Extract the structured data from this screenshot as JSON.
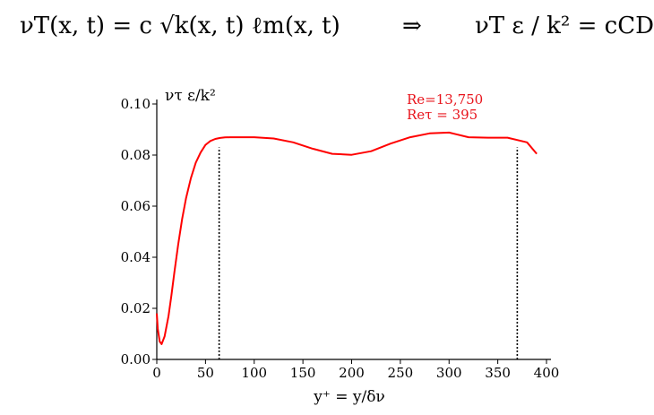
{
  "equations": {
    "left": "νT(x, t) = c √k(x, t) ℓm(x, t)",
    "arrow": "⇒",
    "right": "νT ε / k² = cCD"
  },
  "chart_data": {
    "type": "line",
    "title": "",
    "xlabel": "y⁺ = y/δν",
    "ylabel": "ντ ε/k²",
    "xlim": [
      0,
      400
    ],
    "ylim": [
      0,
      0.1
    ],
    "xticks": [
      0,
      50,
      100,
      150,
      200,
      250,
      300,
      350,
      400
    ],
    "xtick_labels": [
      "0",
      "50",
      "100",
      "150",
      "200",
      "250",
      "300",
      "350",
      "400"
    ],
    "yticks": [
      0,
      0.02,
      0.04,
      0.06,
      0.08,
      0.1
    ],
    "ytick_labels": [
      "0.00",
      "0.02",
      "0.04",
      "0.06",
      "0.08",
      "0.10"
    ],
    "grid": false,
    "annotations": [
      {
        "text": "Re=13,750"
      },
      {
        "text": "Reτ = 395"
      }
    ],
    "vlines": [
      64,
      370
    ],
    "series": [
      {
        "color": "#ff0000",
        "x": [
          0,
          1,
          3,
          5,
          8,
          12,
          15,
          18,
          22,
          26,
          30,
          35,
          40,
          45,
          50,
          55,
          60,
          65,
          70,
          75,
          80,
          90,
          100,
          120,
          140,
          160,
          180,
          200,
          220,
          240,
          260,
          280,
          300,
          320,
          340,
          360,
          380,
          390
        ],
        "y": [
          0.018,
          0.012,
          0.007,
          0.006,
          0.009,
          0.017,
          0.025,
          0.034,
          0.045,
          0.055,
          0.063,
          0.071,
          0.077,
          0.081,
          0.084,
          0.0855,
          0.0863,
          0.0867,
          0.0869,
          0.087,
          0.087,
          0.087,
          0.087,
          0.0865,
          0.085,
          0.0825,
          0.0805,
          0.0801,
          0.0815,
          0.0845,
          0.087,
          0.0885,
          0.0888,
          0.087,
          0.0868,
          0.0868,
          0.085,
          0.0805
        ]
      }
    ]
  }
}
